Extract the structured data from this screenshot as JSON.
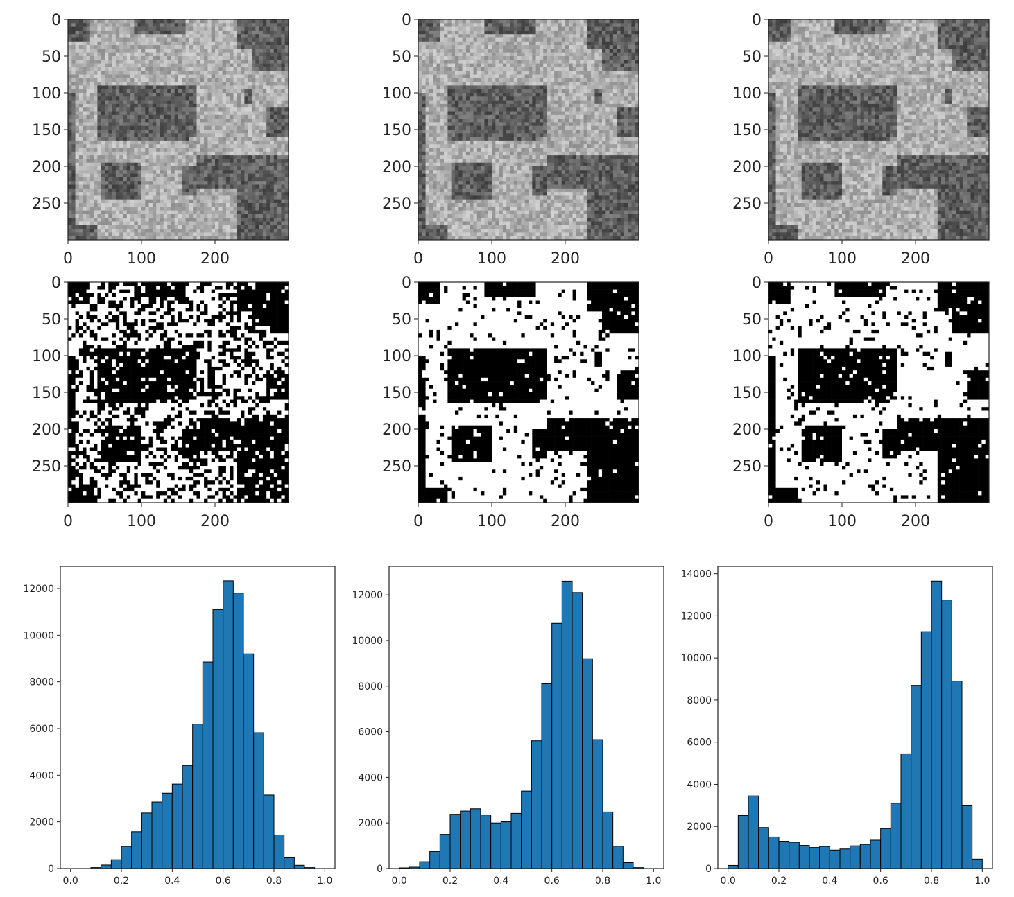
{
  "figure": {
    "image_panels": [
      {
        "row": 0,
        "col": 0,
        "kind": "grayscale",
        "seed": 11
      },
      {
        "row": 0,
        "col": 1,
        "kind": "grayscale",
        "seed": 23
      },
      {
        "row": 0,
        "col": 2,
        "kind": "grayscale",
        "seed": 37
      },
      {
        "row": 1,
        "col": 0,
        "kind": "binary-noisy",
        "seed": 41
      },
      {
        "row": 1,
        "col": 1,
        "kind": "binary",
        "seed": 53
      },
      {
        "row": 1,
        "col": 2,
        "kind": "binary",
        "seed": 67
      }
    ],
    "image_axes": {
      "xticks": [
        "0",
        "100",
        "200"
      ],
      "xtick_values": [
        0,
        100,
        200
      ],
      "yticks": [
        "0",
        "50",
        "100",
        "150",
        "200",
        "250"
      ],
      "ytick_values": [
        0,
        50,
        100,
        150,
        200,
        250
      ],
      "extent": [
        0,
        300
      ]
    }
  },
  "chart_data": [
    {
      "type": "bar",
      "bin_width": 0.04,
      "bin_starts": [
        0.0,
        0.04,
        0.08,
        0.12,
        0.16,
        0.2,
        0.24,
        0.28,
        0.32,
        0.36,
        0.4,
        0.44,
        0.48,
        0.52,
        0.56,
        0.6,
        0.64,
        0.68,
        0.72,
        0.76,
        0.8,
        0.84,
        0.88,
        0.92,
        0.96
      ],
      "values": [
        0,
        0,
        40,
        150,
        380,
        950,
        1580,
        2380,
        2850,
        3230,
        3620,
        4420,
        6190,
        8850,
        11100,
        12330,
        11800,
        9200,
        5820,
        3150,
        1440,
        460,
        140,
        40,
        0
      ],
      "xlim": [
        -0.04,
        1.04
      ],
      "ylim": [
        0,
        12950
      ],
      "xticks": [
        "0.0",
        "0.2",
        "0.4",
        "0.6",
        "0.8",
        "1.0"
      ],
      "xtick_values": [
        0,
        0.2,
        0.4,
        0.6,
        0.8,
        1.0
      ],
      "yticks": [
        "0",
        "2000",
        "4000",
        "6000",
        "8000",
        "10000",
        "12000"
      ],
      "ytick_values": [
        0,
        2000,
        4000,
        6000,
        8000,
        10000,
        12000
      ],
      "bar_color": "#1f77b4"
    },
    {
      "type": "bar",
      "bin_width": 0.04,
      "bin_starts": [
        0.0,
        0.04,
        0.08,
        0.12,
        0.16,
        0.2,
        0.24,
        0.28,
        0.32,
        0.36,
        0.4,
        0.44,
        0.48,
        0.52,
        0.56,
        0.6,
        0.64,
        0.68,
        0.72,
        0.76,
        0.8,
        0.84,
        0.88,
        0.92,
        0.96
      ],
      "values": [
        30,
        60,
        300,
        750,
        1500,
        2380,
        2520,
        2620,
        2350,
        2000,
        2050,
        2420,
        3400,
        5600,
        8100,
        10750,
        12600,
        12100,
        9200,
        5650,
        2480,
        980,
        260,
        40,
        0
      ],
      "xlim": [
        -0.04,
        1.04
      ],
      "ylim": [
        0,
        13250
      ],
      "xticks": [
        "0.0",
        "0.2",
        "0.4",
        "0.6",
        "0.8",
        "1.0"
      ],
      "xtick_values": [
        0,
        0.2,
        0.4,
        0.6,
        0.8,
        1.0
      ],
      "yticks": [
        "0",
        "2000",
        "4000",
        "6000",
        "8000",
        "10000",
        "12000"
      ],
      "ytick_values": [
        0,
        2000,
        4000,
        6000,
        8000,
        10000,
        12000
      ],
      "bar_color": "#1f77b4"
    },
    {
      "type": "bar",
      "bin_width": 0.04,
      "bin_starts": [
        0.0,
        0.04,
        0.08,
        0.12,
        0.16,
        0.2,
        0.24,
        0.28,
        0.32,
        0.36,
        0.4,
        0.44,
        0.48,
        0.52,
        0.56,
        0.6,
        0.64,
        0.68,
        0.72,
        0.76,
        0.8,
        0.84,
        0.88,
        0.92,
        0.96
      ],
      "values": [
        150,
        2520,
        3450,
        1950,
        1500,
        1300,
        1250,
        1100,
        1000,
        1050,
        880,
        930,
        1080,
        1150,
        1350,
        1900,
        3100,
        5450,
        8700,
        11250,
        13650,
        12750,
        8900,
        2980,
        450
      ],
      "xlim": [
        -0.04,
        1.04
      ],
      "ylim": [
        0,
        14350
      ],
      "xticks": [
        "0.0",
        "0.2",
        "0.4",
        "0.6",
        "0.8",
        "1.0"
      ],
      "xtick_values": [
        0,
        0.2,
        0.4,
        0.6,
        0.8,
        1.0
      ],
      "yticks": [
        "0",
        "2000",
        "4000",
        "6000",
        "8000",
        "10000",
        "12000",
        "14000"
      ],
      "ytick_values": [
        0,
        2000,
        4000,
        6000,
        8000,
        10000,
        12000,
        14000
      ],
      "bar_color": "#1f77b4"
    }
  ]
}
